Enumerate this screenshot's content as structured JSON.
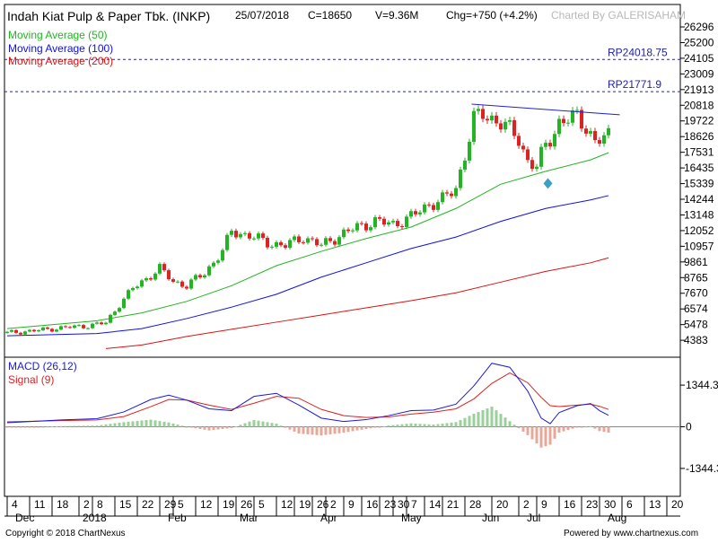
{
  "header": {
    "title": "Indah Kiat Pulp & Paper Tbk. (INKP)",
    "date": "25/07/2018",
    "close": "C=18650",
    "volume": "V=9.36M",
    "change": "Chg=+750 (+4.2%)",
    "charted_by": "Charted By GALERISAHAM"
  },
  "footer": {
    "copyright": "Copyright © 2018 ChartNexus",
    "powered_by": "Powered by www.chartnexus.com"
  },
  "colors": {
    "up": "#22b422",
    "down": "#dd2222",
    "ma50": "#22b422",
    "ma100": "#1010dd",
    "ma200": "#dd1010",
    "macd": "#1a1ad8",
    "signal": "#dd2222",
    "trendline": "#2222cc",
    "resistance": "#2222aa",
    "marker": "#3aa0c8"
  },
  "chart_data": [
    {
      "type": "candlestick",
      "legend": [
        {
          "name": "Moving Average (50)",
          "color": "#22b422"
        },
        {
          "name": "Moving Average (100)",
          "color": "#1010dd"
        },
        {
          "name": "Moving Average (200)",
          "color": "#dd1010"
        }
      ],
      "y_ticks": [
        26296,
        25200,
        24105,
        23009,
        21913,
        20818,
        19722,
        18626,
        17531,
        16435,
        15339,
        14244,
        13148,
        12052,
        10957,
        9861,
        8765,
        7670,
        6574,
        5478,
        4383
      ],
      "ylim": [
        3700,
        26296
      ],
      "annotations": [
        {
          "label": "RP24018.75",
          "value": 24018.75
        },
        {
          "label": "RP21771.9",
          "value": 21771.9
        }
      ],
      "trendline": {
        "x": [
          103.5,
          136.5
        ],
        "y": [
          20900,
          20150
        ]
      },
      "marker": {
        "x": 120.5,
        "y": 15350
      },
      "ma50": [
        [
          0,
          5200
        ],
        [
          20,
          5750
        ],
        [
          30,
          6300
        ],
        [
          40,
          7100
        ],
        [
          50,
          8200
        ],
        [
          60,
          9600
        ],
        [
          70,
          10600
        ],
        [
          80,
          11500
        ],
        [
          90,
          12300
        ],
        [
          100,
          13600
        ],
        [
          110,
          15300
        ],
        [
          120,
          16200
        ],
        [
          130,
          17000
        ],
        [
          134,
          17500
        ]
      ],
      "ma100": [
        [
          0,
          4700
        ],
        [
          20,
          4850
        ],
        [
          30,
          5200
        ],
        [
          40,
          5900
        ],
        [
          50,
          6700
        ],
        [
          60,
          7600
        ],
        [
          70,
          8800
        ],
        [
          80,
          9800
        ],
        [
          90,
          10800
        ],
        [
          100,
          11600
        ],
        [
          110,
          12700
        ],
        [
          120,
          13600
        ],
        [
          130,
          14200
        ],
        [
          134,
          14500
        ]
      ],
      "ma200": [
        [
          22,
          3800
        ],
        [
          30,
          4050
        ],
        [
          40,
          4650
        ],
        [
          50,
          5150
        ],
        [
          60,
          5650
        ],
        [
          70,
          6150
        ],
        [
          80,
          6650
        ],
        [
          90,
          7150
        ],
        [
          100,
          7700
        ],
        [
          110,
          8450
        ],
        [
          120,
          9200
        ],
        [
          130,
          9800
        ],
        [
          134,
          10150
        ]
      ]
    },
    {
      "type": "macd",
      "legend": [
        {
          "name": "MACD (26,12)",
          "color": "#1a1ad8"
        },
        {
          "name": "Signal (9)",
          "color": "#dd2222"
        }
      ],
      "y_ticks": [
        1344.3,
        0,
        -1344.3
      ],
      "ylim": [
        -2100,
        2100
      ],
      "macd": [
        [
          0,
          130
        ],
        [
          12,
          220
        ],
        [
          20,
          260
        ],
        [
          26,
          480
        ],
        [
          32,
          880
        ],
        [
          36,
          1020
        ],
        [
          40,
          860
        ],
        [
          45,
          580
        ],
        [
          50,
          520
        ],
        [
          55,
          980
        ],
        [
          60,
          1080
        ],
        [
          65,
          700
        ],
        [
          70,
          280
        ],
        [
          75,
          170
        ],
        [
          80,
          230
        ],
        [
          85,
          360
        ],
        [
          90,
          520
        ],
        [
          95,
          540
        ],
        [
          100,
          730
        ],
        [
          104,
          1320
        ],
        [
          108,
          2050
        ],
        [
          112,
          1920
        ],
        [
          116,
          1150
        ],
        [
          119,
          280
        ],
        [
          121,
          100
        ],
        [
          123,
          460
        ],
        [
          127,
          680
        ],
        [
          130,
          750
        ],
        [
          132,
          520
        ],
        [
          134,
          370
        ]
      ],
      "signal": [
        [
          0,
          160
        ],
        [
          12,
          200
        ],
        [
          20,
          220
        ],
        [
          26,
          330
        ],
        [
          32,
          650
        ],
        [
          36,
          880
        ],
        [
          40,
          860
        ],
        [
          45,
          700
        ],
        [
          50,
          560
        ],
        [
          55,
          760
        ],
        [
          60,
          980
        ],
        [
          65,
          920
        ],
        [
          70,
          560
        ],
        [
          75,
          360
        ],
        [
          80,
          300
        ],
        [
          85,
          320
        ],
        [
          90,
          410
        ],
        [
          95,
          470
        ],
        [
          100,
          580
        ],
        [
          104,
          900
        ],
        [
          108,
          1400
        ],
        [
          112,
          1740
        ],
        [
          116,
          1420
        ],
        [
          119,
          950
        ],
        [
          121,
          680
        ],
        [
          123,
          650
        ],
        [
          127,
          700
        ],
        [
          130,
          730
        ],
        [
          132,
          660
        ],
        [
          134,
          560
        ]
      ]
    }
  ],
  "x_axis": {
    "days": [
      {
        "x": 0,
        "label": "4"
      },
      {
        "x": 5,
        "label": "11"
      },
      {
        "x": 10,
        "label": "18"
      },
      {
        "x": 16,
        "label": "2"
      },
      {
        "x": 19,
        "label": "8"
      },
      {
        "x": 24,
        "label": "15"
      },
      {
        "x": 29,
        "label": "22"
      },
      {
        "x": 34,
        "label": "29"
      },
      {
        "x": 37,
        "label": "5"
      },
      {
        "x": 42,
        "label": "12"
      },
      {
        "x": 47,
        "label": "19"
      },
      {
        "x": 51,
        "label": "26"
      },
      {
        "x": 55,
        "label": "5"
      },
      {
        "x": 60,
        "label": "12"
      },
      {
        "x": 64,
        "label": "19"
      },
      {
        "x": 68,
        "label": "26"
      },
      {
        "x": 71,
        "label": "2"
      },
      {
        "x": 75,
        "label": "9"
      },
      {
        "x": 79,
        "label": "16"
      },
      {
        "x": 83,
        "label": "23"
      },
      {
        "x": 86,
        "label": "30"
      },
      {
        "x": 89,
        "label": "7"
      },
      {
        "x": 93,
        "label": "14"
      },
      {
        "x": 97,
        "label": "21"
      },
      {
        "x": 102,
        "label": "28"
      },
      {
        "x": 108,
        "label": "20"
      },
      {
        "x": 114,
        "label": "2"
      },
      {
        "x": 118,
        "label": "9"
      },
      {
        "x": 123,
        "label": "16"
      },
      {
        "x": 128,
        "label": "23"
      },
      {
        "x": 132,
        "label": "30"
      },
      {
        "x": 137,
        "label": "6"
      },
      {
        "x": 142,
        "label": "13"
      },
      {
        "x": 147,
        "label": "20"
      }
    ],
    "months": [
      {
        "x": 1,
        "label": "Dec"
      },
      {
        "x": 16,
        "label": "2018"
      },
      {
        "x": 35,
        "label": "Feb"
      },
      {
        "x": 51,
        "label": "Mar"
      },
      {
        "x": 69,
        "label": "Apr"
      },
      {
        "x": 87,
        "label": "May"
      },
      {
        "x": 105,
        "label": "Jun"
      },
      {
        "x": 115,
        "label": "Jul"
      },
      {
        "x": 133,
        "label": "Aug"
      }
    ]
  }
}
